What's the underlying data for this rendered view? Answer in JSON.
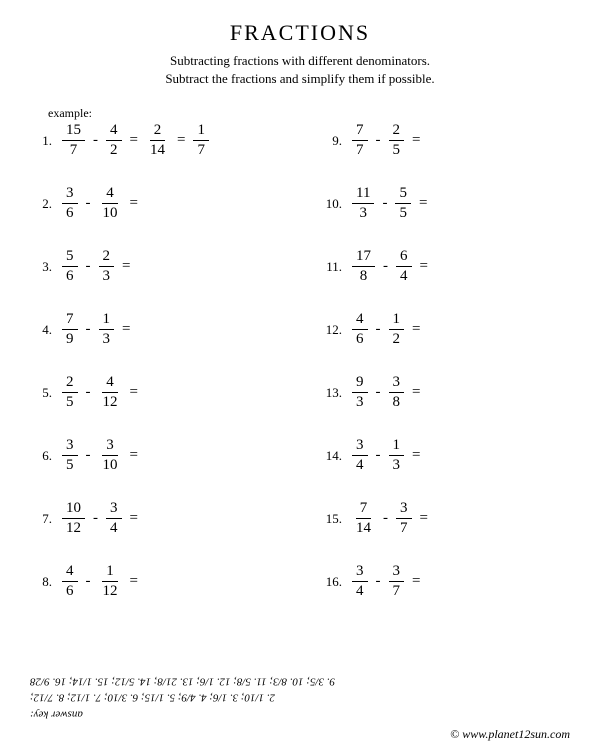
{
  "title": "FRACTIONS",
  "subtitle_line1": "Subtracting fractions with different denominators.",
  "subtitle_line2": "Subtract the fractions and simplify them if possible.",
  "example_label": "example:",
  "problems": [
    {
      "n": "1.",
      "f1n": "15",
      "f1d": "7",
      "f2n": "4",
      "f2d": "2",
      "ans1n": "2",
      "ans1d": "14",
      "ans2n": "1",
      "ans2d": "7",
      "has_answer": true
    },
    {
      "n": "2.",
      "f1n": "3",
      "f1d": "6",
      "f2n": "4",
      "f2d": "10",
      "has_answer": false
    },
    {
      "n": "3.",
      "f1n": "5",
      "f1d": "6",
      "f2n": "2",
      "f2d": "3",
      "has_answer": false
    },
    {
      "n": "4.",
      "f1n": "7",
      "f1d": "9",
      "f2n": "1",
      "f2d": "3",
      "has_answer": false
    },
    {
      "n": "5.",
      "f1n": "2",
      "f1d": "5",
      "f2n": "4",
      "f2d": "12",
      "has_answer": false
    },
    {
      "n": "6.",
      "f1n": "3",
      "f1d": "5",
      "f2n": "3",
      "f2d": "10",
      "has_answer": false
    },
    {
      "n": "7.",
      "f1n": "10",
      "f1d": "12",
      "f2n": "3",
      "f2d": "4",
      "has_answer": false
    },
    {
      "n": "8.",
      "f1n": "4",
      "f1d": "6",
      "f2n": "1",
      "f2d": "12",
      "has_answer": false
    },
    {
      "n": "9.",
      "f1n": "7",
      "f1d": "7",
      "f2n": "2",
      "f2d": "5",
      "has_answer": false
    },
    {
      "n": "10.",
      "f1n": "11",
      "f1d": "3",
      "f2n": "5",
      "f2d": "5",
      "has_answer": false
    },
    {
      "n": "11.",
      "f1n": "17",
      "f1d": "8",
      "f2n": "6",
      "f2d": "4",
      "has_answer": false
    },
    {
      "n": "12.",
      "f1n": "4",
      "f1d": "6",
      "f2n": "1",
      "f2d": "2",
      "has_answer": false
    },
    {
      "n": "13.",
      "f1n": "9",
      "f1d": "3",
      "f2n": "3",
      "f2d": "8",
      "has_answer": false
    },
    {
      "n": "14.",
      "f1n": "3",
      "f1d": "4",
      "f2n": "1",
      "f2d": "3",
      "has_answer": false
    },
    {
      "n": "15.",
      "f1n": "7",
      "f1d": "14",
      "f2n": "3",
      "f2d": "7",
      "has_answer": false
    },
    {
      "n": "16.",
      "f1n": "3",
      "f1d": "4",
      "f2n": "3",
      "f2d": "7",
      "has_answer": false
    }
  ],
  "answer_key_label": "answer key:",
  "answer_key_line1": "2. 1/10; 3. 1/6; 4. 4/9; 5. 1/15; 6. 3/10; 7. 1/12; 8. 7/12;",
  "answer_key_line2": "9. 3/5; 10. 8/3; 11. 5/8; 12. 1/6; 13. 21/8; 14. 5/12; 15. 1/14; 16. 9/28",
  "copyright": "© www.planet12sun.com"
}
